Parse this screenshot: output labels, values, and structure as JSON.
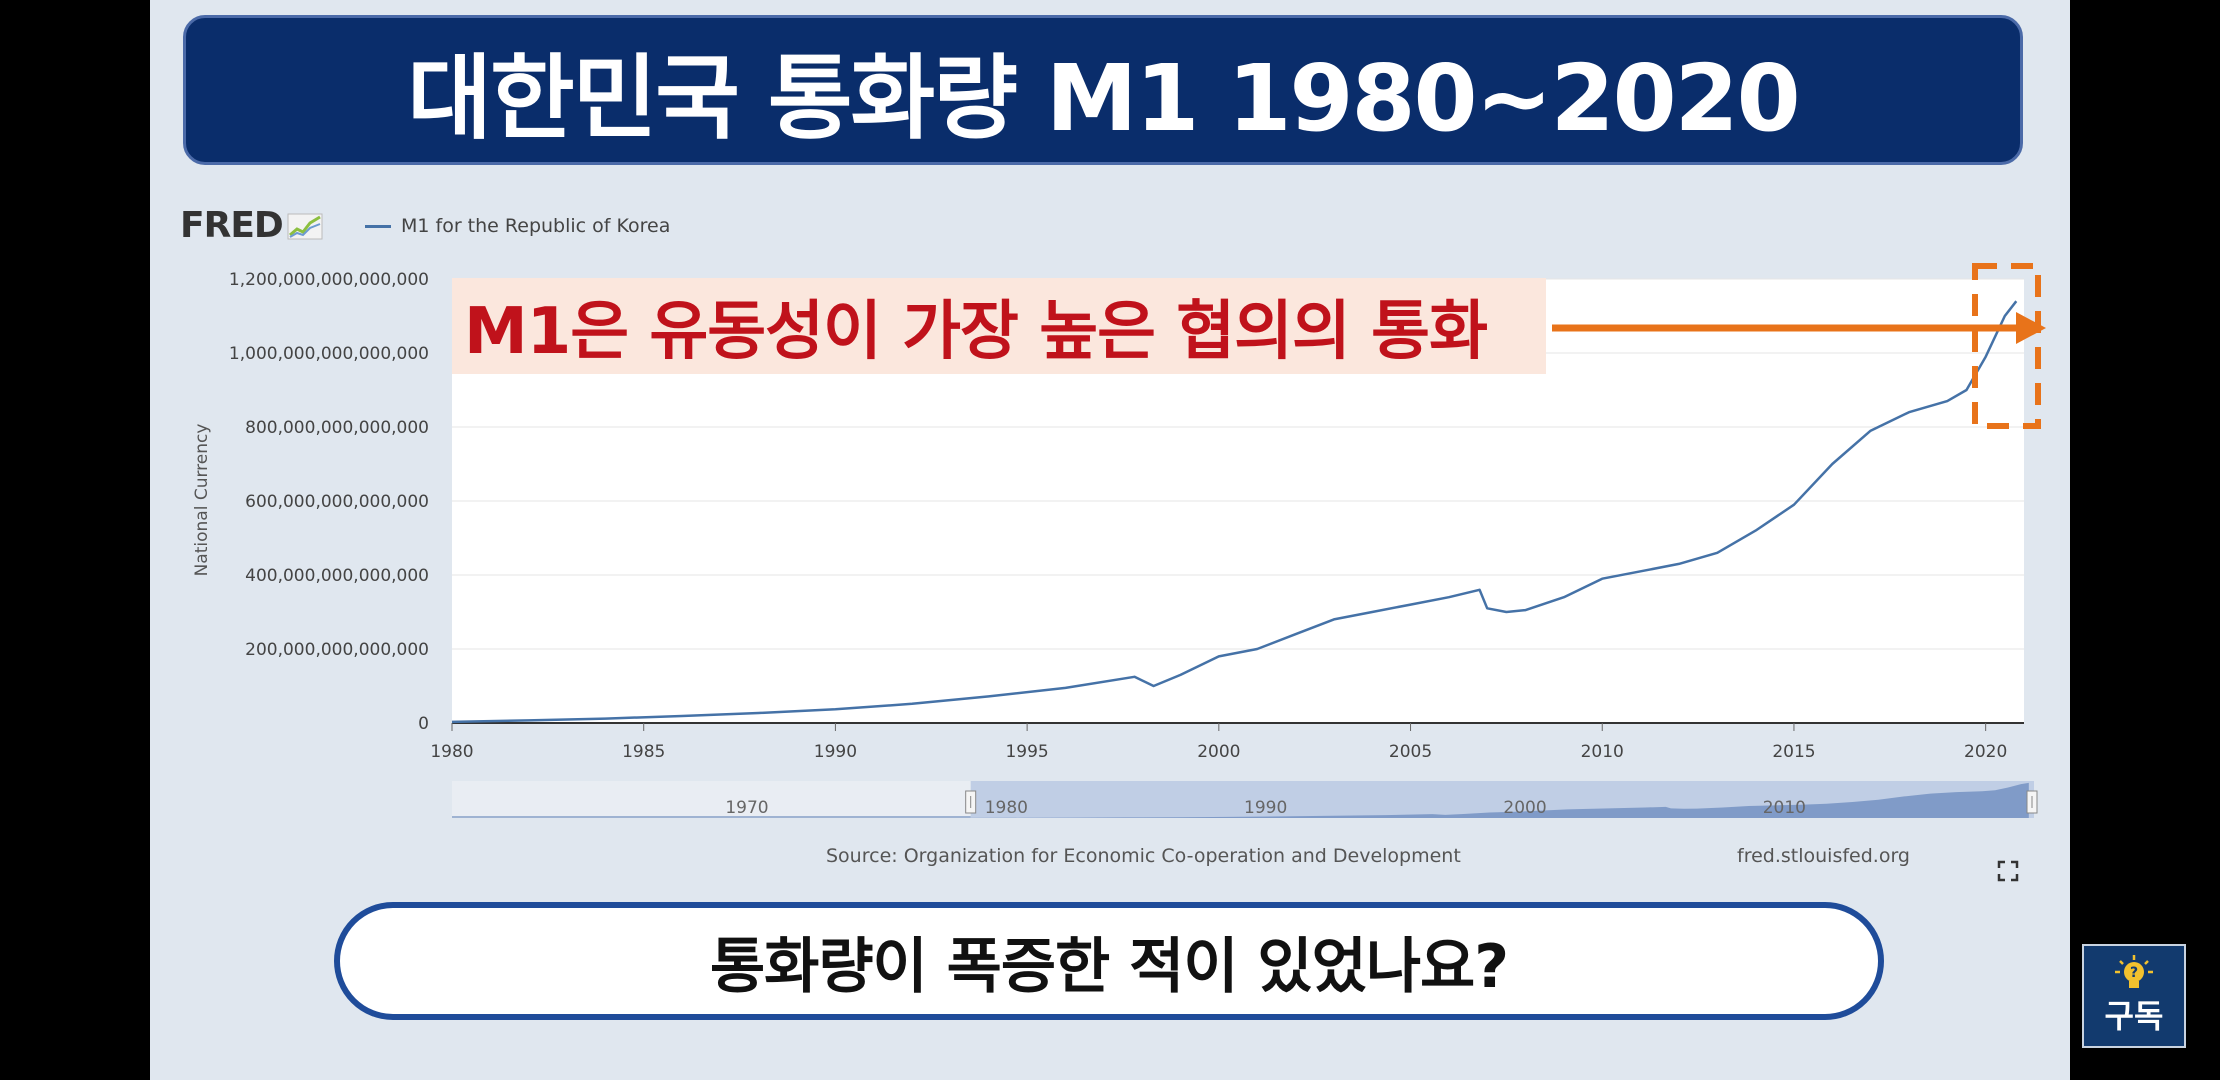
{
  "title": "대한민국 통화량 M1 1980~2020",
  "fred": {
    "logo_text": "FRED",
    "legend_label": "M1 for the Republic of Korea",
    "source": "Source: Organization for Economic Co-operation and Development",
    "site": "fred.stlouisfed.org"
  },
  "annotation": {
    "text": "M1은 유동성이 가장 높은 협의의 통화",
    "highlight_color": "#e8731a"
  },
  "question": "통화량이 폭증한 적이 있었나요?",
  "subscribe_label": "구독",
  "colors": {
    "banner": "#0a2d6b",
    "series": "#4572a7",
    "annotation_text": "#c0121b",
    "annotation_bg": "#fbe7dd",
    "question_border": "#1f4c9a"
  },
  "chart_data": {
    "type": "line",
    "title": "",
    "xlabel": "",
    "ylabel": "National Currency",
    "xlim": [
      1980,
      2021
    ],
    "ylim": [
      0,
      1200000000000000
    ],
    "y_ticks": [
      0,
      200000000000000,
      400000000000000,
      600000000000000,
      800000000000000,
      1000000000000000,
      1200000000000000
    ],
    "y_tick_labels": [
      "0",
      "200,000,000,000,000",
      "400,000,000,000,000",
      "600,000,000,000,000",
      "800,000,000,000,000",
      "1,000,000,000,000,000",
      "1,200,000,000,000,000"
    ],
    "x_ticks": [
      1980,
      1985,
      1990,
      1995,
      2000,
      2005,
      2010,
      2015,
      2020
    ],
    "x_tick_labels": [
      "1980",
      "1985",
      "1990",
      "1995",
      "2000",
      "2005",
      "2010",
      "2015",
      "2020"
    ],
    "navigator_labels": [
      "1970",
      "1980",
      "1990",
      "2000",
      "2010"
    ],
    "grid": true,
    "legend": "top-left",
    "series": [
      {
        "name": "M1 for the Republic of Korea",
        "x": [
          1980,
          1982,
          1984,
          1986,
          1988,
          1990,
          1992,
          1994,
          1996,
          1997.8,
          1998.3,
          1999,
          2000,
          2001,
          2002,
          2003,
          2004,
          2005,
          2006,
          2006.8,
          2007,
          2007.5,
          2008,
          2009,
          2010,
          2011,
          2012,
          2013,
          2014,
          2015,
          2016,
          2017,
          2018,
          2019,
          2019.5,
          2020,
          2020.5,
          2020.8
        ],
        "y": [
          3000000000000,
          7000000000000,
          12000000000000,
          19000000000000,
          27000000000000,
          37000000000000,
          52000000000000,
          72000000000000,
          95000000000000,
          125000000000000,
          100000000000000,
          130000000000000,
          180000000000000,
          200000000000000,
          240000000000000,
          280000000000000,
          300000000000000,
          320000000000000,
          340000000000000,
          360000000000000,
          310000000000000,
          300000000000000,
          305000000000000,
          340000000000000,
          390000000000000,
          410000000000000,
          430000000000000,
          460000000000000,
          520000000000000,
          590000000000000,
          700000000000000,
          790000000000000,
          840000000000000,
          870000000000000,
          900000000000000,
          990000000000000,
          1100000000000000,
          1140000000000000
        ]
      }
    ]
  }
}
